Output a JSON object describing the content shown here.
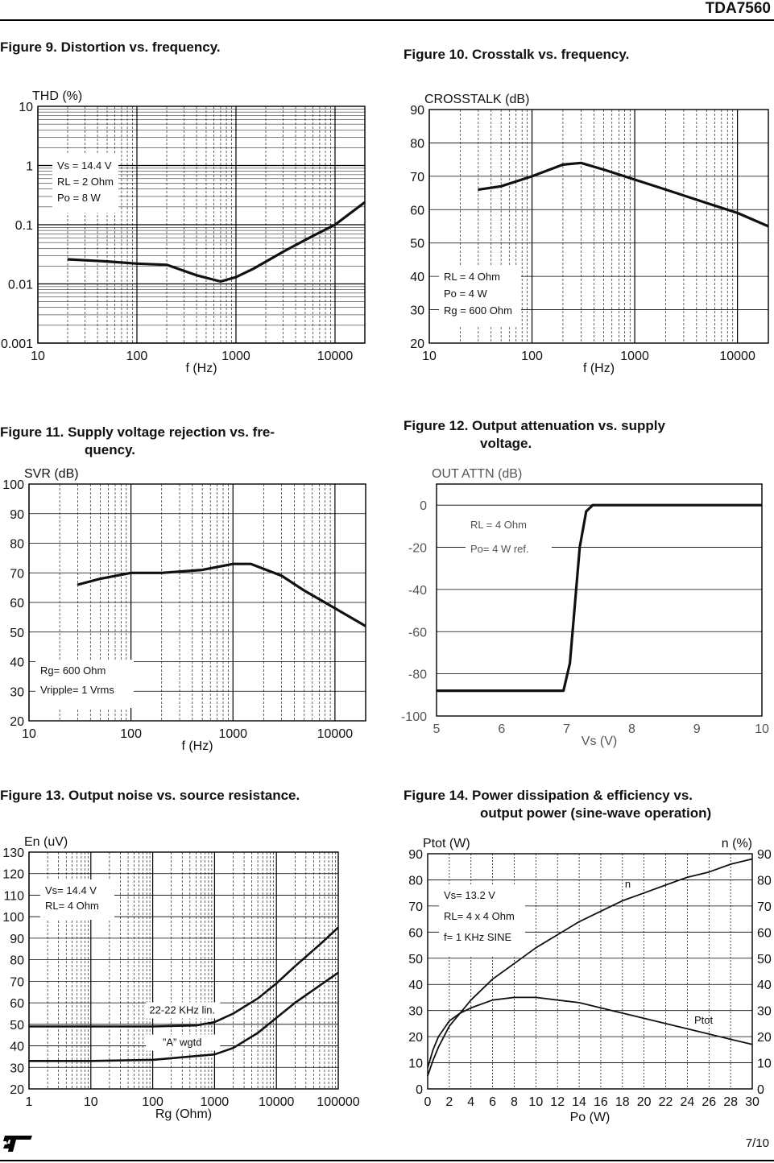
{
  "header": {
    "doc_id": "TDA7560"
  },
  "footer": {
    "page": "7/10",
    "logo": "st-logo"
  },
  "figures": [
    {
      "title_1": "Figure 9. Distortion vs. frequency.",
      "title_2": ""
    },
    {
      "title_1": "Figure 10. Crosstalk vs. frequency.",
      "title_2": ""
    },
    {
      "title_1": "Figure 11. Supply voltage rejection vs. fre-",
      "title_2": "quency."
    },
    {
      "title_1": "Figure 12. Output attenuation vs. supply",
      "title_2": "voltage."
    },
    {
      "title_1": "Figure 13. Output noise vs. source resistance.",
      "title_2": ""
    },
    {
      "title_1": "Figure 14. Power dissipation & efficiency vs.",
      "title_2": "output power (sine-wave operation)"
    }
  ],
  "chart_data": [
    {
      "type": "line",
      "ylabel": "THD (%)",
      "xlabel": "f (Hz)",
      "xscale": "log",
      "yscale": "log",
      "xlim": [
        10,
        20000
      ],
      "ylim": [
        0.001,
        10
      ],
      "xticks": [
        "10",
        "100",
        "1000",
        "10000"
      ],
      "yticks": [
        "0.001",
        "0.01",
        "0.1",
        "1",
        "10"
      ],
      "grid": true,
      "annotations": [
        "Vs = 14.4 V",
        "RL = 2 Ohm",
        "Po = 8 W"
      ],
      "series": [
        {
          "x": [
            20,
            50,
            100,
            200,
            400,
            700,
            1000,
            1500,
            3000,
            6000,
            10000,
            20000
          ],
          "y": [
            0.026,
            0.024,
            0.022,
            0.021,
            0.014,
            0.011,
            0.013,
            0.018,
            0.035,
            0.065,
            0.1,
            0.24
          ]
        }
      ]
    },
    {
      "type": "line",
      "ylabel": "CROSSTALK (dB)",
      "xlabel": "f (Hz)",
      "xscale": "log",
      "xlim": [
        10,
        20000
      ],
      "ylim": [
        20,
        90
      ],
      "xticks": [
        "10",
        "100",
        "1000",
        "10000"
      ],
      "yticks": [
        "20",
        "30",
        "40",
        "50",
        "60",
        "70",
        "80",
        "90"
      ],
      "grid": true,
      "annotations": [
        "RL = 4 Ohm",
        "Po = 4 W",
        "Rg = 600 Ohm"
      ],
      "series": [
        {
          "x": [
            30,
            50,
            100,
            200,
            300,
            500,
            1000,
            2000,
            5000,
            10000,
            20000
          ],
          "y": [
            66,
            67,
            70,
            73.5,
            74,
            72,
            69,
            66,
            62,
            59,
            55
          ]
        }
      ]
    },
    {
      "type": "line",
      "ylabel": "SVR (dB)",
      "xlabel": "f (Hz)",
      "xscale": "log",
      "xlim": [
        10,
        20000
      ],
      "ylim": [
        20,
        100
      ],
      "xticks": [
        "10",
        "100",
        "1000",
        "10000"
      ],
      "yticks": [
        "20",
        "30",
        "40",
        "50",
        "60",
        "70",
        "80",
        "90",
        "100"
      ],
      "grid": true,
      "annotations": [
        "Rg= 600 Ohm",
        "Vripple= 1 Vrms"
      ],
      "series": [
        {
          "x": [
            30,
            50,
            100,
            200,
            500,
            1000,
            1500,
            3000,
            5000,
            10000,
            20000
          ],
          "y": [
            66,
            68,
            70,
            70,
            71,
            73,
            73,
            69,
            64,
            58,
            52
          ]
        }
      ]
    },
    {
      "type": "line",
      "ylabel": "OUT ATTN (dB)",
      "xlabel": "Vs (V)",
      "xlim": [
        5,
        10
      ],
      "ylim": [
        -100,
        10
      ],
      "xticks": [
        "5",
        "6",
        "7",
        "8",
        "9",
        "10"
      ],
      "yticks": [
        "-100",
        "-80",
        "-60",
        "-40",
        "-20",
        "0"
      ],
      "grid": true,
      "annotations": [
        "RL = 4 Ohm",
        "Po= 4 W ref."
      ],
      "series": [
        {
          "x": [
            5,
            6.95,
            7.05,
            7.2,
            7.3,
            7.4,
            8,
            10
          ],
          "y": [
            -88,
            -88,
            -75,
            -20,
            -3,
            0,
            0,
            0
          ]
        }
      ]
    },
    {
      "type": "line",
      "ylabel": "En (uV)",
      "xlabel": "Rg (Ohm)",
      "xscale": "log",
      "xlim": [
        1,
        100000
      ],
      "ylim": [
        20,
        130
      ],
      "xticks": [
        "1",
        "10",
        "100",
        "1000",
        "10000",
        "100000"
      ],
      "yticks": [
        "20",
        "30",
        "40",
        "50",
        "60",
        "70",
        "80",
        "90",
        "100",
        "110",
        "120",
        "130"
      ],
      "grid": true,
      "annotations": [
        "Vs= 14.4 V",
        "RL= 4 Ohm",
        "22-22 KHz lin.",
        "”A” wgtd"
      ],
      "series": [
        {
          "name": "22-22 KHz lin.",
          "x": [
            1,
            10,
            100,
            500,
            1000,
            2000,
            5000,
            10000,
            20000,
            50000,
            100000
          ],
          "y": [
            49,
            49,
            49,
            49.5,
            51,
            55,
            62,
            69,
            77,
            87,
            95
          ]
        },
        {
          "name": "”A” wgtd",
          "x": [
            1,
            10,
            100,
            1000,
            2000,
            5000,
            10000,
            20000,
            50000,
            100000
          ],
          "y": [
            33,
            33,
            33.5,
            36,
            39,
            46,
            53,
            60,
            68,
            74
          ]
        }
      ]
    },
    {
      "type": "line",
      "ylabel": "Ptot (W)",
      "ylabel_right": "n (%)",
      "xlabel": "Po (W)",
      "xlim": [
        0,
        30
      ],
      "ylim": [
        0,
        90
      ],
      "xticks": [
        "0",
        "2",
        "4",
        "6",
        "8",
        "10",
        "12",
        "14",
        "16",
        "18",
        "20",
        "22",
        "24",
        "26",
        "28",
        "30"
      ],
      "yticks": [
        "0",
        "10",
        "20",
        "30",
        "40",
        "50",
        "60",
        "70",
        "80",
        "90"
      ],
      "grid": true,
      "annotations": [
        "Vs= 13.2 V",
        "RL= 4 x 4 Ohm",
        "f= 1 KHz SINE"
      ],
      "series": [
        {
          "name": "n",
          "x": [
            0,
            0.5,
            1,
            2,
            3,
            4,
            6,
            8,
            10,
            12,
            14,
            16,
            18,
            20,
            22,
            24,
            26,
            28,
            30
          ],
          "y": [
            5,
            11,
            16,
            24,
            29,
            34,
            42,
            48,
            54,
            59,
            64,
            68,
            72,
            75,
            78,
            81,
            83,
            86,
            88
          ]
        },
        {
          "name": "Ptot",
          "x": [
            0,
            0.5,
            1,
            2,
            3,
            4,
            6,
            8,
            10,
            12,
            14,
            16,
            18,
            20,
            22,
            24,
            26,
            28,
            30
          ],
          "y": [
            8,
            15,
            20,
            26,
            29,
            31,
            34,
            35,
            35,
            34,
            33,
            31,
            29,
            27,
            25,
            23,
            21,
            19,
            17
          ]
        }
      ]
    }
  ]
}
